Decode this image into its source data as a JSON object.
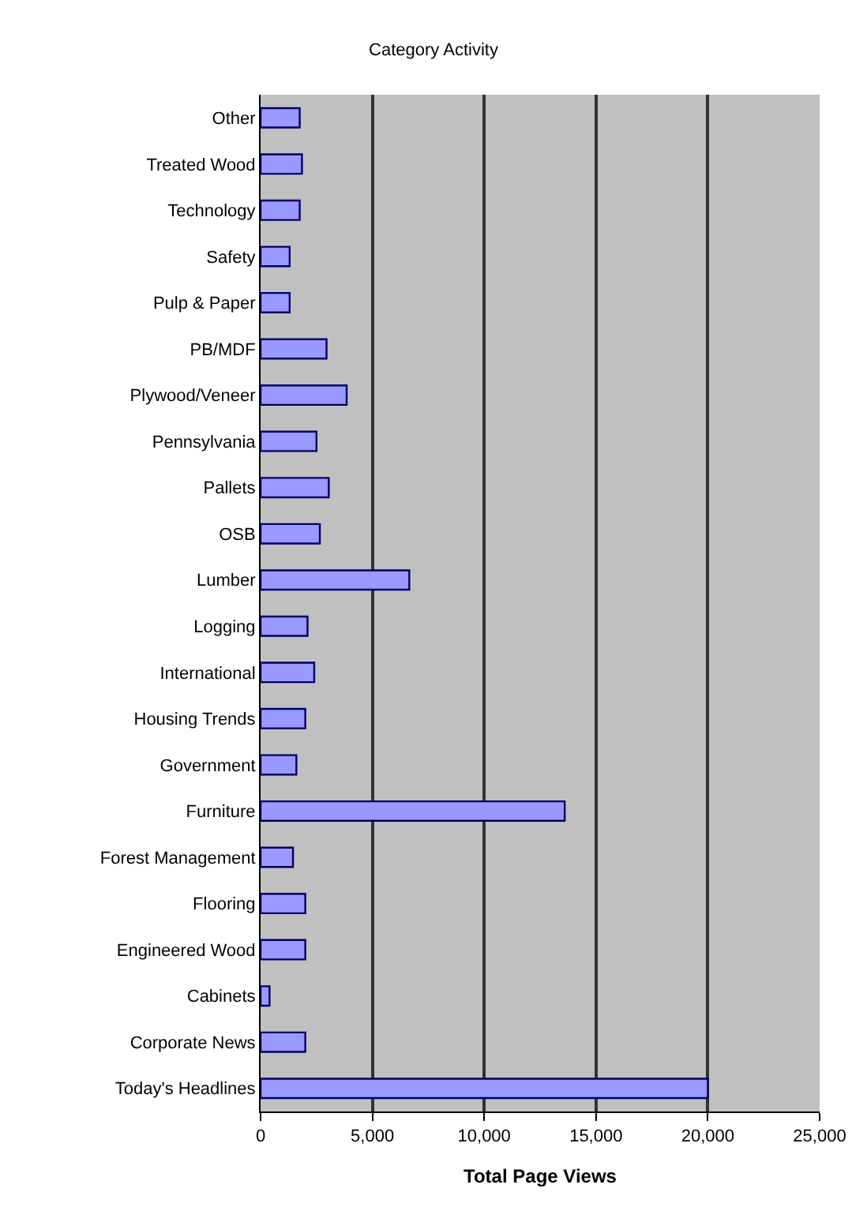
{
  "chart_data": {
    "type": "bar",
    "orientation": "horizontal",
    "title": "Category Activity",
    "xlabel": "Total Page Views",
    "categories": [
      "Other",
      "Treated Wood",
      "Technology",
      "Safety",
      "Pulp & Paper",
      "PB/MDF",
      "Plywood/Veneer",
      "Pennsylvania",
      "Pallets",
      "OSB",
      "Lumber",
      "Logging",
      "International",
      "Housing Trends",
      "Government",
      "Furniture",
      "Forest Management",
      "Flooring",
      "Engineered Wood",
      "Cabinets",
      "Corporate News",
      "Today's Headlines"
    ],
    "values": [
      1750,
      1850,
      1750,
      1300,
      1300,
      2950,
      3850,
      2500,
      3050,
      2650,
      6650,
      2100,
      2400,
      2000,
      1600,
      13600,
      1450,
      2000,
      2000,
      400,
      2000,
      20000
    ],
    "color": "#9999ff",
    "xlim": [
      0,
      25000
    ],
    "xticks": [
      0,
      {
        "value": 5000,
        "label": "5,000"
      },
      {
        "value": 10000,
        "label": "10,000"
      },
      {
        "value": 15000,
        "label": "15,000"
      },
      {
        "value": 20000,
        "label": "20,000"
      },
      {
        "value": 25000,
        "label": "25,000"
      }
    ],
    "grid": "x"
  }
}
